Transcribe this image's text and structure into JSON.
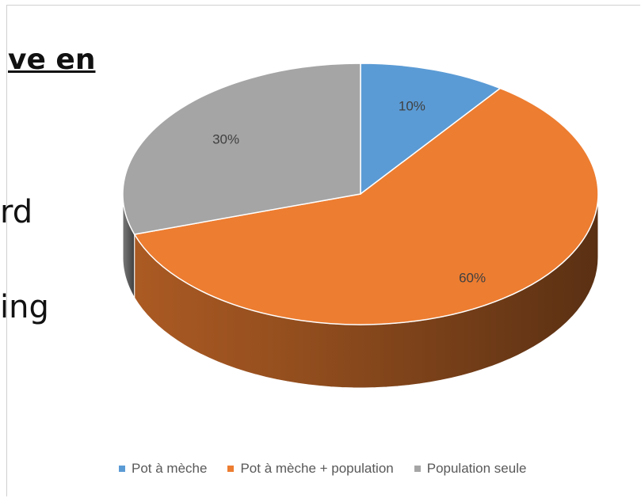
{
  "background_text": {
    "line1": "ve en",
    "line2": "rd",
    "line3": "ing"
  },
  "chart_data": {
    "type": "pie",
    "title": "",
    "three_d": true,
    "legend_position": "bottom",
    "categories": [
      "Pot à mèche",
      "Pot à mèche + population",
      "Population seule"
    ],
    "values": [
      10,
      60,
      30
    ],
    "labels": [
      "10%",
      "60%",
      "30%"
    ],
    "colors": [
      "#5B9BD5",
      "#ED7D31",
      "#A5A5A5"
    ]
  }
}
